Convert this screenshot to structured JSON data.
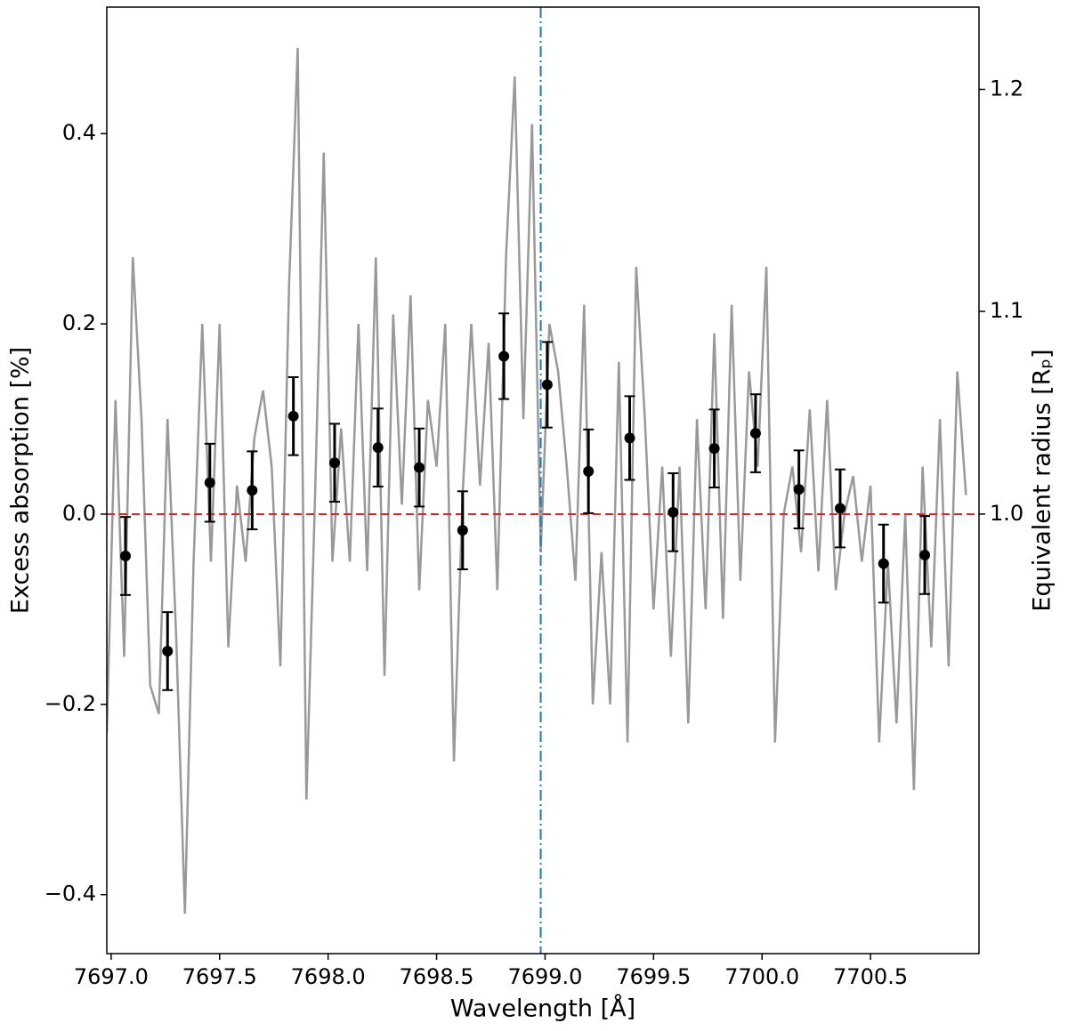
{
  "chart_data": {
    "type": "line_errorbar",
    "xlabel": "Wavelength [Å]",
    "ylabel": "Excess absorption [%]",
    "y2label": "Equivalent radius [Rₚ]",
    "xlim": [
      7696.98,
      7701.0
    ],
    "ylim": [
      -0.462,
      0.533
    ],
    "y2lim": [
      0.738,
      1.235
    ],
    "y2scale": "square",
    "xticks": [
      {
        "value": 7697.0,
        "label": "7697.0"
      },
      {
        "value": 7697.5,
        "label": "7697.5"
      },
      {
        "value": 7698.0,
        "label": "7698.0"
      },
      {
        "value": 7698.5,
        "label": "7698.5"
      },
      {
        "value": 7699.0,
        "label": "7699.0"
      },
      {
        "value": 7699.5,
        "label": "7699.5"
      },
      {
        "value": 7700.0,
        "label": "7700.0"
      },
      {
        "value": 7700.5,
        "label": "7700.5"
      }
    ],
    "yticks": [
      {
        "value": -0.4,
        "label": "−0.4"
      },
      {
        "value": -0.2,
        "label": "−0.2"
      },
      {
        "value": 0.0,
        "label": "0.0"
      },
      {
        "value": 0.2,
        "label": "0.2"
      },
      {
        "value": 0.4,
        "label": "0.4"
      }
    ],
    "y2ticks": [
      {
        "value": 1.0,
        "label": "1.0"
      },
      1.1,
      1.2
    ],
    "hline": {
      "value": 0,
      "color": "#d62728"
    },
    "vline": {
      "value": 7698.98,
      "color": "#1f77b4"
    },
    "series": [
      {
        "kind": "line",
        "color": "#999999",
        "x": [
          7696.98,
          7697.02,
          7697.06,
          7697.1,
          7697.14,
          7697.18,
          7697.22,
          7697.26,
          7697.3,
          7697.34,
          7697.38,
          7697.42,
          7697.46,
          7697.5,
          7697.54,
          7697.58,
          7697.62,
          7697.66,
          7697.7,
          7697.74,
          7697.78,
          7697.82,
          7697.86,
          7697.9,
          7697.94,
          7697.98,
          7698.02,
          7698.06,
          7698.1,
          7698.14,
          7698.18,
          7698.22,
          7698.26,
          7698.3,
          7698.34,
          7698.38,
          7698.42,
          7698.46,
          7698.5,
          7698.54,
          7698.58,
          7698.62,
          7698.66,
          7698.7,
          7698.74,
          7698.78,
          7698.82,
          7698.86,
          7698.9,
          7698.94,
          7698.98,
          7699.02,
          7699.06,
          7699.1,
          7699.14,
          7699.18,
          7699.22,
          7699.26,
          7699.3,
          7699.34,
          7699.38,
          7699.42,
          7699.46,
          7699.5,
          7699.54,
          7699.58,
          7699.62,
          7699.66,
          7699.7,
          7699.74,
          7699.78,
          7699.82,
          7699.86,
          7699.9,
          7699.94,
          7699.98,
          7700.02,
          7700.06,
          7700.1,
          7700.14,
          7700.18,
          7700.22,
          7700.26,
          7700.3,
          7700.34,
          7700.38,
          7700.42,
          7700.46,
          7700.5,
          7700.54,
          7700.58,
          7700.62,
          7700.66,
          7700.7,
          7700.74,
          7700.78,
          7700.82,
          7700.86,
          7700.9,
          7700.94
        ],
        "values": [
          -0.23,
          0.12,
          -0.15,
          0.27,
          0.1,
          -0.18,
          -0.21,
          0.1,
          -0.13,
          -0.42,
          -0.05,
          0.2,
          -0.05,
          0.2,
          -0.14,
          0.03,
          -0.05,
          0.08,
          0.13,
          0.05,
          -0.16,
          0.24,
          0.49,
          -0.3,
          0.02,
          0.38,
          -0.05,
          0.09,
          -0.05,
          0.2,
          -0.06,
          0.27,
          -0.17,
          0.21,
          0.01,
          0.23,
          -0.08,
          0.12,
          0.05,
          0.2,
          -0.26,
          0.02,
          0.2,
          0.03,
          0.18,
          -0.08,
          0.27,
          0.46,
          0.1,
          0.41,
          -0.04,
          0.2,
          0.15,
          0.05,
          -0.07,
          0.22,
          -0.2,
          -0.04,
          -0.2,
          0.16,
          -0.24,
          0.26,
          0.1,
          -0.1,
          0.05,
          -0.15,
          0.05,
          -0.22,
          0.1,
          -0.1,
          0.19,
          -0.11,
          0.22,
          -0.07,
          0.15,
          0.05,
          0.26,
          -0.24,
          0.0,
          0.05,
          -0.04,
          0.11,
          -0.06,
          0.12,
          -0.08,
          0.0,
          0.04,
          -0.05,
          0.03,
          -0.24,
          -0.05,
          -0.22,
          0.0,
          -0.29,
          0.05,
          -0.14,
          0.1,
          -0.16,
          0.15,
          0.02
        ]
      },
      {
        "kind": "errorbar",
        "color": "#000000",
        "x": [
          7697.066,
          7697.26,
          7697.455,
          7697.65,
          7697.84,
          7698.03,
          7698.23,
          7698.42,
          7698.62,
          7698.81,
          7699.01,
          7699.2,
          7699.39,
          7699.59,
          7699.78,
          7699.97,
          7700.17,
          7700.36,
          7700.56,
          7700.75
        ],
        "values": [
          -0.044,
          -0.144,
          0.033,
          0.025,
          0.103,
          0.054,
          0.07,
          0.049,
          -0.017,
          0.166,
          0.136,
          0.045,
          0.08,
          0.002,
          0.069,
          0.085,
          0.026,
          0.006,
          -0.052,
          -0.043
        ],
        "errors": [
          0.041,
          0.041,
          0.041,
          0.041,
          0.041,
          0.041,
          0.041,
          0.041,
          0.041,
          0.045,
          0.045,
          0.044,
          0.044,
          0.041,
          0.041,
          0.041,
          0.041,
          0.041,
          0.041,
          0.041
        ]
      }
    ]
  }
}
